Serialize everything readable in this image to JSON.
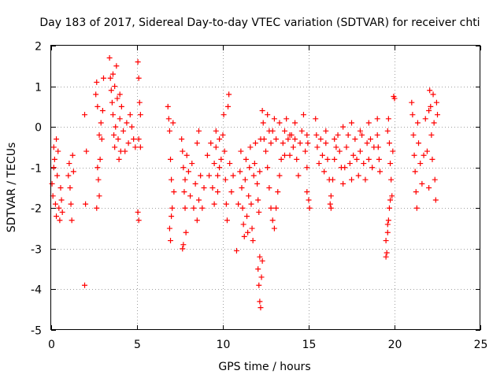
{
  "chart_data": {
    "type": "scatter",
    "title": "Day 183 of 2017, Sidereal Day-to-day VTEC variation (SDTVAR) for receiver chti",
    "xlabel": "GPS time / hours",
    "ylabel": "SDTVAR / TECUs",
    "xlim": [
      0,
      25
    ],
    "ylim": [
      -5,
      2
    ],
    "xticks": [
      0,
      5,
      10,
      15,
      20,
      25
    ],
    "yticks": [
      -5,
      -4,
      -3,
      -2,
      -1,
      0,
      1,
      2
    ],
    "grid": true,
    "marker": "plus",
    "color": "#ff0000",
    "series": [
      {
        "name": "SDTVAR",
        "points": [
          [
            0.05,
            -1.4
          ],
          [
            0.1,
            -1.7
          ],
          [
            0.15,
            -1.0
          ],
          [
            0.2,
            -0.8
          ],
          [
            0.25,
            -1.9
          ],
          [
            0.3,
            -2.2
          ],
          [
            0.35,
            -1.2
          ],
          [
            0.4,
            -0.6
          ],
          [
            0.45,
            -2.0
          ],
          [
            0.5,
            -2.3
          ],
          [
            0.55,
            -1.5
          ],
          [
            0.6,
            -1.8
          ],
          [
            0.65,
            -2.1
          ],
          [
            0.15,
            -0.5
          ],
          [
            0.3,
            -0.3
          ],
          [
            1.0,
            -1.2
          ],
          [
            1.05,
            -0.9
          ],
          [
            1.1,
            -1.5
          ],
          [
            1.15,
            -1.9
          ],
          [
            1.2,
            -2.3
          ],
          [
            1.25,
            -0.7
          ],
          [
            1.3,
            -1.1
          ],
          [
            1.95,
            0.3
          ],
          [
            2.05,
            -0.6
          ],
          [
            2.0,
            -1.9
          ],
          [
            1.95,
            -3.9
          ],
          [
            2.6,
            0.8
          ],
          [
            2.65,
            1.1
          ],
          [
            2.7,
            0.5
          ],
          [
            2.75,
            -1.3
          ],
          [
            2.8,
            -1.7
          ],
          [
            2.85,
            -0.8
          ],
          [
            2.9,
            0.1
          ],
          [
            2.95,
            -0.3
          ],
          [
            3.0,
            0.4
          ],
          [
            2.65,
            -2.0
          ],
          [
            2.7,
            -1.0
          ],
          [
            3.05,
            1.2
          ],
          [
            2.8,
            -0.2
          ],
          [
            3.4,
            1.7
          ],
          [
            3.45,
            1.2
          ],
          [
            3.5,
            0.9
          ],
          [
            3.55,
            0.6
          ],
          [
            3.6,
            0.3
          ],
          [
            3.65,
            -0.2
          ],
          [
            3.7,
            -0.5
          ],
          [
            3.75,
            0.0
          ],
          [
            3.8,
            1.5
          ],
          [
            3.85,
            0.7
          ],
          [
            3.9,
            -0.3
          ],
          [
            3.95,
            -0.8
          ],
          [
            4.0,
            0.2
          ],
          [
            4.05,
            -0.6
          ],
          [
            4.1,
            0.5
          ],
          [
            4.2,
            -0.1
          ],
          [
            4.3,
            -0.6
          ],
          [
            4.4,
            0.1
          ],
          [
            4.5,
            -0.4
          ],
          [
            4.6,
            0.3
          ],
          [
            4.7,
            0.0
          ],
          [
            4.8,
            -0.3
          ],
          [
            4.9,
            -0.5
          ],
          [
            3.6,
            1.3
          ],
          [
            3.7,
            1.0
          ],
          [
            4.0,
            0.8
          ],
          [
            5.05,
            1.6
          ],
          [
            5.1,
            1.2
          ],
          [
            5.15,
            0.6
          ],
          [
            5.2,
            0.3
          ],
          [
            5.1,
            -0.3
          ],
          [
            5.2,
            -0.5
          ],
          [
            5.05,
            -2.1
          ],
          [
            5.1,
            -2.3
          ],
          [
            6.8,
            0.5
          ],
          [
            6.85,
            0.2
          ],
          [
            6.9,
            -0.1
          ],
          [
            6.95,
            -0.8
          ],
          [
            7.0,
            -1.3
          ],
          [
            7.05,
            -2.0
          ],
          [
            6.9,
            -2.5
          ],
          [
            6.95,
            -2.8
          ],
          [
            7.1,
            0.1
          ],
          [
            7.15,
            -1.6
          ],
          [
            7.0,
            -2.2
          ],
          [
            7.6,
            -0.3
          ],
          [
            7.65,
            -0.6
          ],
          [
            7.7,
            -1.0
          ],
          [
            7.75,
            -1.6
          ],
          [
            7.8,
            -2.0
          ],
          [
            7.85,
            -2.6
          ],
          [
            7.7,
            -2.9
          ],
          [
            7.65,
            -3.0
          ],
          [
            7.8,
            -1.3
          ],
          [
            7.9,
            -0.7
          ],
          [
            8.0,
            -1.1
          ],
          [
            8.1,
            -1.7
          ],
          [
            8.2,
            -0.9
          ],
          [
            8.3,
            -2.0
          ],
          [
            8.4,
            -1.4
          ],
          [
            8.5,
            -2.3
          ],
          [
            8.6,
            -1.8
          ],
          [
            8.7,
            -1.2
          ],
          [
            8.8,
            -2.0
          ],
          [
            8.9,
            -1.5
          ],
          [
            8.5,
            -0.4
          ],
          [
            8.6,
            -0.1
          ],
          [
            9.1,
            -0.7
          ],
          [
            9.2,
            -1.2
          ],
          [
            9.3,
            -0.4
          ],
          [
            9.4,
            -1.5
          ],
          [
            9.5,
            -0.9
          ],
          [
            9.6,
            -0.5
          ],
          [
            9.7,
            -1.2
          ],
          [
            9.8,
            -0.3
          ],
          [
            9.9,
            -0.8
          ],
          [
            9.5,
            -1.9
          ],
          [
            9.6,
            -0.1
          ],
          [
            9.7,
            -1.6
          ],
          [
            9.8,
            -1.0
          ],
          [
            10.0,
            -0.2
          ],
          [
            10.05,
            0.3
          ],
          [
            10.1,
            -0.6
          ],
          [
            10.15,
            -1.3
          ],
          [
            10.2,
            -1.9
          ],
          [
            10.25,
            -2.3
          ],
          [
            10.3,
            0.5
          ],
          [
            10.35,
            0.8
          ],
          [
            10.4,
            -0.9
          ],
          [
            10.5,
            -1.6
          ],
          [
            10.6,
            -1.2
          ],
          [
            10.8,
            -3.05
          ],
          [
            10.9,
            -1.9
          ],
          [
            11.0,
            -1.1
          ],
          [
            11.05,
            -0.6
          ],
          [
            11.1,
            -1.5
          ],
          [
            11.15,
            -2.0
          ],
          [
            11.2,
            -2.4
          ],
          [
            11.25,
            -2.7
          ],
          [
            11.3,
            -1.3
          ],
          [
            11.35,
            -0.8
          ],
          [
            11.4,
            -2.2
          ],
          [
            11.45,
            -2.6
          ],
          [
            11.5,
            -1.7
          ],
          [
            11.55,
            -1.0
          ],
          [
            11.6,
            -0.5
          ],
          [
            11.65,
            -1.9
          ],
          [
            11.7,
            -2.5
          ],
          [
            11.75,
            -2.8
          ],
          [
            11.8,
            -1.2
          ],
          [
            11.85,
            -0.9
          ],
          [
            11.9,
            -0.4
          ],
          [
            12.0,
            -1.4
          ],
          [
            12.05,
            -1.8
          ],
          [
            12.1,
            -2.1
          ],
          [
            12.15,
            -1.1
          ],
          [
            12.2,
            -0.3
          ],
          [
            12.05,
            -3.5
          ],
          [
            12.1,
            -3.9
          ],
          [
            12.15,
            -4.3
          ],
          [
            12.2,
            -4.45
          ],
          [
            12.25,
            -3.7
          ],
          [
            12.3,
            -3.3
          ],
          [
            12.15,
            -3.2
          ],
          [
            12.3,
            0.4
          ],
          [
            12.35,
            0.1
          ],
          [
            12.4,
            -0.3
          ],
          [
            12.5,
            -0.6
          ],
          [
            12.6,
            -1.0
          ],
          [
            12.7,
            -1.5
          ],
          [
            12.8,
            -2.0
          ],
          [
            12.9,
            -2.3
          ],
          [
            13.0,
            -2.5
          ],
          [
            13.1,
            -2.0
          ],
          [
            13.2,
            -1.6
          ],
          [
            13.3,
            -1.2
          ],
          [
            13.4,
            -0.8
          ],
          [
            13.5,
            -0.4
          ],
          [
            13.6,
            -0.1
          ],
          [
            13.7,
            0.2
          ],
          [
            13.8,
            -0.3
          ],
          [
            13.9,
            -0.7
          ],
          [
            14.0,
            -0.2
          ],
          [
            14.1,
            -0.5
          ],
          [
            14.2,
            0.1
          ],
          [
            14.3,
            -0.8
          ],
          [
            14.4,
            -1.2
          ],
          [
            14.5,
            -0.4
          ],
          [
            14.6,
            -0.1
          ],
          [
            14.7,
            0.3
          ],
          [
            14.8,
            -0.6
          ],
          [
            14.9,
            -1.0
          ],
          [
            12.6,
            0.3
          ],
          [
            12.7,
            -0.1
          ],
          [
            12.8,
            -0.4
          ],
          [
            12.9,
            -0.1
          ],
          [
            13.0,
            0.2
          ],
          [
            13.1,
            -0.3
          ],
          [
            13.3,
            0.1
          ],
          [
            13.6,
            -0.7
          ],
          [
            13.9,
            -0.2
          ],
          [
            14.2,
            -0.3
          ],
          [
            14.9,
            -1.6
          ],
          [
            15.0,
            -1.8
          ],
          [
            15.05,
            -2.0
          ],
          [
            14.95,
            -0.4
          ],
          [
            14.9,
            -0.2
          ],
          [
            15.4,
            0.2
          ],
          [
            15.45,
            -0.2
          ],
          [
            15.5,
            -0.5
          ],
          [
            15.6,
            -0.9
          ],
          [
            15.7,
            -0.3
          ],
          [
            15.8,
            -0.7
          ],
          [
            15.9,
            -1.1
          ],
          [
            16.0,
            -0.4
          ],
          [
            16.1,
            -0.8
          ],
          [
            16.2,
            -1.3
          ],
          [
            16.3,
            -1.7
          ],
          [
            16.4,
            -1.3
          ],
          [
            16.5,
            -0.8
          ],
          [
            16.6,
            -0.5
          ],
          [
            16.7,
            -0.2
          ],
          [
            16.8,
            -0.6
          ],
          [
            16.9,
            -1.0
          ],
          [
            17.0,
            -1.4
          ],
          [
            17.1,
            -1.0
          ],
          [
            17.2,
            -0.5
          ],
          [
            17.3,
            -0.2
          ],
          [
            17.4,
            -0.9
          ],
          [
            17.5,
            -1.3
          ],
          [
            17.6,
            -0.7
          ],
          [
            17.7,
            -0.3
          ],
          [
            17.8,
            -0.8
          ],
          [
            17.9,
            -1.2
          ],
          [
            18.0,
            -0.6
          ],
          [
            18.1,
            -0.2
          ],
          [
            18.2,
            -0.9
          ],
          [
            18.3,
            -1.3
          ],
          [
            18.4,
            -0.4
          ],
          [
            18.5,
            -0.8
          ],
          [
            18.6,
            -0.3
          ],
          [
            18.7,
            -1.0
          ],
          [
            18.8,
            -0.5
          ],
          [
            16.3,
            -2.0
          ],
          [
            16.25,
            -1.9
          ],
          [
            16.0,
            -0.1
          ],
          [
            16.5,
            -0.3
          ],
          [
            17.0,
            0.0
          ],
          [
            17.5,
            0.1
          ],
          [
            18.0,
            -0.1
          ],
          [
            18.5,
            0.1
          ],
          [
            19.0,
            -0.2
          ],
          [
            19.05,
            -0.5
          ],
          [
            19.1,
            -0.8
          ],
          [
            19.15,
            -1.1
          ],
          [
            19.0,
            0.2
          ],
          [
            19.5,
            -2.8
          ],
          [
            19.55,
            -3.1
          ],
          [
            19.6,
            -2.6
          ],
          [
            19.65,
            -2.3
          ],
          [
            19.7,
            -2.0
          ],
          [
            19.75,
            -1.8
          ],
          [
            19.5,
            -3.2
          ],
          [
            19.6,
            -0.1
          ],
          [
            19.65,
            0.2
          ],
          [
            19.7,
            -0.4
          ],
          [
            19.75,
            -0.9
          ],
          [
            19.8,
            -1.3
          ],
          [
            19.85,
            -1.7
          ],
          [
            19.9,
            -0.6
          ],
          [
            19.95,
            0.75
          ],
          [
            20.0,
            0.7
          ],
          [
            19.6,
            -2.4
          ],
          [
            21.0,
            0.6
          ],
          [
            21.05,
            0.3
          ],
          [
            21.1,
            -0.2
          ],
          [
            21.15,
            -0.7
          ],
          [
            21.2,
            -1.1
          ],
          [
            21.25,
            -1.6
          ],
          [
            21.3,
            -2.0
          ],
          [
            21.35,
            0.1
          ],
          [
            21.4,
            -0.4
          ],
          [
            21.5,
            -0.9
          ],
          [
            21.6,
            -1.4
          ],
          [
            21.7,
            -0.7
          ],
          [
            21.8,
            0.2
          ],
          [
            21.9,
            -0.6
          ],
          [
            22.0,
            0.4
          ],
          [
            22.05,
            0.9
          ],
          [
            22.1,
            0.5
          ],
          [
            22.15,
            -0.2
          ],
          [
            22.2,
            -0.8
          ],
          [
            22.25,
            0.8
          ],
          [
            22.3,
            0.1
          ],
          [
            22.35,
            -1.3
          ],
          [
            22.4,
            -1.8
          ],
          [
            22.45,
            0.6
          ],
          [
            22.5,
            0.3
          ],
          [
            22.0,
            -1.5
          ]
        ]
      }
    ]
  }
}
